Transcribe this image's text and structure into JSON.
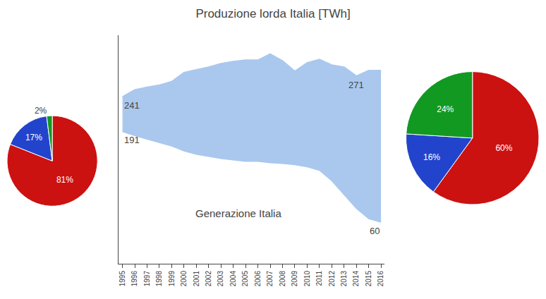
{
  "chart_data": [
    {
      "type": "area",
      "title": "Produzione lorda Italia [TWh]",
      "x": [
        1995,
        1996,
        1997,
        1998,
        1999,
        2000,
        2001,
        2002,
        2003,
        2004,
        2005,
        2006,
        2007,
        2008,
        2009,
        2010,
        2011,
        2012,
        2013,
        2014,
        2015,
        2016
      ],
      "values": [
        241,
        251,
        255,
        258,
        263,
        276,
        280,
        284,
        289,
        292,
        294,
        294,
        303,
        293,
        278,
        290,
        295,
        287,
        284,
        271,
        279,
        279
      ],
      "low_values": [
        191,
        185,
        180,
        175,
        170,
        163,
        158,
        155,
        152,
        150,
        148,
        148,
        146,
        145,
        143,
        140,
        135,
        120,
        100,
        80,
        65,
        60
      ],
      "color": "#aac8ee",
      "xlim": [
        1994.7,
        2016.3
      ],
      "xticks": [
        1995,
        1996,
        1997,
        1998,
        1999,
        2000,
        2001,
        2002,
        2003,
        2004,
        2005,
        2006,
        2007,
        2008,
        2009,
        2010,
        2011,
        2012,
        2013,
        2014,
        2015,
        2016
      ],
      "ylim": [
        0,
        330
      ],
      "tick_labels": "x",
      "grid": false,
      "annotations": [
        {
          "text": "241",
          "x": 1995,
          "y": 241
        },
        {
          "text": "271",
          "x": 2014,
          "y": 271
        },
        {
          "text": "191",
          "x": 1995,
          "y": 191
        },
        {
          "text": "60",
          "x": 2016,
          "y": 60
        },
        {
          "text": "Generazione Italia"
        }
      ]
    },
    {
      "type": "pie",
      "values": [
        81,
        17,
        2
      ],
      "value_labels": [
        "81%",
        "17%",
        "2%"
      ],
      "colors": [
        "#cc1111",
        "#2244cc",
        "#119922"
      ],
      "data_labels": true
    },
    {
      "type": "pie",
      "values": [
        60,
        16,
        24
      ],
      "value_labels": [
        "60%",
        "16%",
        "24%"
      ],
      "colors": [
        "#cc1111",
        "#2244cc",
        "#119922"
      ],
      "data_labels": true
    }
  ]
}
